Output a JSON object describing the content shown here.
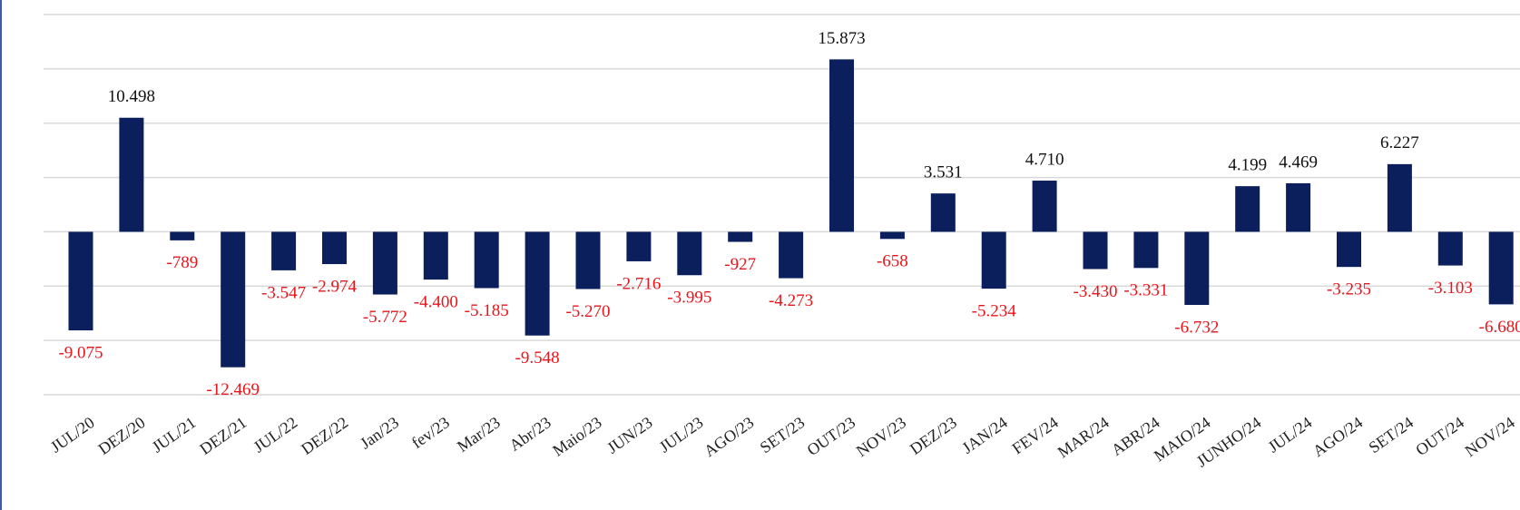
{
  "chart_data": {
    "type": "bar",
    "categories": [
      "JUL/20",
      "DEZ/20",
      "JUL/21",
      "DEZ/21",
      "JUL/22",
      "DEZ/22",
      "Jan/23",
      "fev/23",
      "Mar/23",
      "Abr/23",
      "Maio/23",
      "JUN/23",
      "JUL/23",
      "AGO/23",
      "SET/23",
      "OUT/23",
      "NOV/23",
      "DEZ/23",
      "JAN/24",
      "FEV/24",
      "MAR/24",
      "ABR/24",
      "MAIO/24",
      "JUNHO/24",
      "JUL/24",
      "AGO/24",
      "SET/24",
      "OUT/24",
      "NOV/24"
    ],
    "values": [
      -9075,
      10498,
      -789,
      -12469,
      -3547,
      -2974,
      -5772,
      -4400,
      -5185,
      -9548,
      -5270,
      -2716,
      -3995,
      -927,
      -4273,
      15873,
      -658,
      3531,
      -5234,
      4710,
      -3430,
      -3331,
      -6732,
      4199,
      4469,
      -3235,
      6227,
      -3103,
      -6680
    ],
    "value_labels": [
      "-9.075",
      "10.498",
      "-789",
      "-12.469",
      "-3.547",
      "-2.974",
      "-5.772",
      "-4.400",
      "-5.185",
      "-9.548",
      "-5.270",
      "-2.716",
      "-3.995",
      "-927",
      "-4.273",
      "15.873",
      "-658",
      "3.531",
      "-5.234",
      "4.710",
      "-3.430",
      "-3.331",
      "-6.732",
      "4.199",
      "4.469",
      "-3.235",
      "6.227",
      "-3.103",
      "-6.680"
    ],
    "color": "#0a1f5c",
    "positive_label_color": "#111111",
    "negative_label_color": "#e8141b",
    "ylim": [
      -15000,
      20000
    ],
    "yticks": [
      -15000,
      -10000,
      -5000,
      0,
      5000,
      10000,
      15000,
      20000
    ],
    "grid": true
  }
}
